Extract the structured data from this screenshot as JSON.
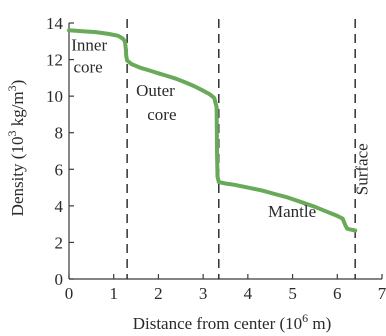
{
  "chart_data": {
    "type": "line",
    "title": "",
    "xlabel": "Distance from center (10",
    "xlabel_sup": "6",
    "xlabel_tail": " m)",
    "ylabel": "Density (10",
    "ylabel_sup1": "3",
    "ylabel_mid": " kg/m",
    "ylabel_sup2": "3",
    "ylabel_tail": ")",
    "xlim": [
      0,
      7
    ],
    "ylim": [
      0,
      14
    ],
    "xticks": [
      0,
      1,
      2,
      3,
      4,
      5,
      6,
      7
    ],
    "yticks": [
      0,
      2,
      4,
      6,
      8,
      10,
      12,
      14
    ],
    "color": "#69aa5a",
    "series": [
      {
        "x": [
          0,
          0.3,
          0.6,
          0.9,
          1.1,
          1.2,
          1.25,
          1.27,
          1.28,
          1.3,
          1.4,
          1.6,
          1.8,
          2.0,
          2.2,
          2.4,
          2.6,
          2.8,
          3.0,
          3.15,
          3.25,
          3.3,
          3.31,
          3.32,
          3.35,
          3.5,
          3.7,
          4.0,
          4.3,
          4.6,
          4.9,
          5.2,
          5.5,
          5.8,
          6.0,
          6.12,
          6.18,
          6.22,
          6.3,
          6.4
        ],
        "y": [
          13.6,
          13.55,
          13.5,
          13.4,
          13.3,
          13.15,
          13.0,
          12.6,
          12.2,
          11.95,
          11.75,
          11.55,
          11.4,
          11.25,
          11.1,
          10.95,
          10.75,
          10.55,
          10.3,
          10.1,
          9.9,
          9.4,
          7.0,
          5.6,
          5.3,
          5.22,
          5.15,
          5.0,
          4.85,
          4.65,
          4.45,
          4.2,
          3.95,
          3.65,
          3.45,
          3.3,
          2.95,
          2.75,
          2.7,
          2.65
        ]
      }
    ],
    "boundaries": [
      1.3,
      3.35,
      6.4
    ],
    "annotations": [
      {
        "text": "Inner",
        "x": 0.05,
        "y": 12.5
      },
      {
        "text": "core",
        "x": 0.1,
        "y": 11.3
      },
      {
        "text": "Outer",
        "x": 1.5,
        "y": 10.0
      },
      {
        "text": "core",
        "x": 1.75,
        "y": 8.7
      },
      {
        "text": "Mantle",
        "x": 4.45,
        "y": 3.4
      },
      {
        "text": "Surface",
        "x": 6.68,
        "y": 6.0,
        "rotate": -90
      }
    ]
  }
}
